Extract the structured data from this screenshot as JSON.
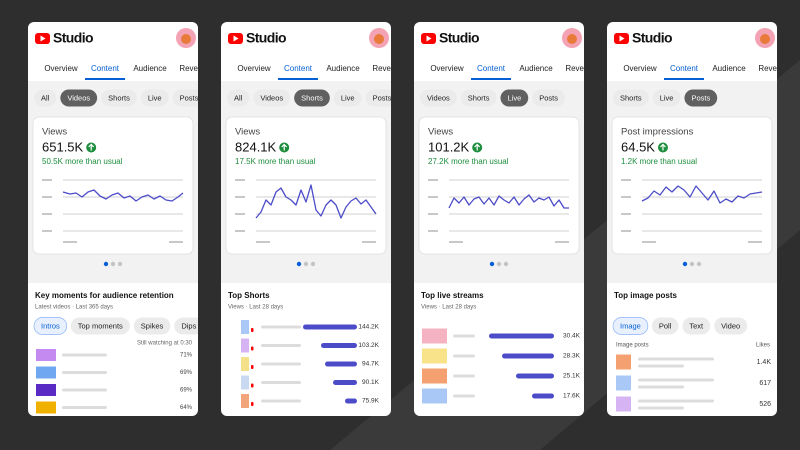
{
  "header": {
    "brand": "Studio",
    "tabs": [
      "Overview",
      "Content",
      "Audience",
      "Rever"
    ],
    "active_tab": 1
  },
  "panels": [
    {
      "chips": [
        "All",
        "Videos",
        "Shorts",
        "Live",
        "Posts"
      ],
      "active_chip": 1,
      "card": {
        "title": "Views",
        "value": "651.5K",
        "delta": "50.5K more than usual"
      },
      "section": {
        "kind": "retention",
        "title": "Key moments for audience retention",
        "subtitle": "Latest videos · Last 365 days",
        "filters": [
          "Intros",
          "Top moments",
          "Spikes",
          "Dips"
        ],
        "active_filter": 0,
        "note": "Still watching at 0:30",
        "rows": [
          {
            "color": "#c58af0",
            "value": "71%"
          },
          {
            "color": "#6fa8f0",
            "value": "69%"
          },
          {
            "color": "#5a2bc4",
            "value": "69%"
          },
          {
            "color": "#f0b000",
            "value": "64%"
          }
        ]
      }
    },
    {
      "chips": [
        "All",
        "Videos",
        "Shorts",
        "Live",
        "Posts"
      ],
      "active_chip": 2,
      "card": {
        "title": "Views",
        "value": "824.1K",
        "delta": "17.5K more than usual"
      },
      "section": {
        "kind": "shorts",
        "title": "Top Shorts",
        "subtitle": "Views · Last 28 days",
        "rows": [
          {
            "color": "#a9c8f5",
            "value": "144.2K"
          },
          {
            "color": "#d6b3f2",
            "value": "103.2K"
          },
          {
            "color": "#f5e08a",
            "value": "94.7K"
          },
          {
            "color": "#c9d9f2",
            "value": "90.1K"
          },
          {
            "color": "#f2a57a",
            "value": "75.9K"
          }
        ]
      }
    },
    {
      "chips": [
        "Videos",
        "Shorts",
        "Live",
        "Posts"
      ],
      "active_chip": 2,
      "card": {
        "title": "Views",
        "value": "101.2K",
        "delta": "27.2K more than usual"
      },
      "section": {
        "kind": "live",
        "title": "Top live streams",
        "subtitle": "Views · Last 28 days",
        "rows": [
          {
            "color": "#f5b3c2",
            "value": "30.4K"
          },
          {
            "color": "#f8e28a",
            "value": "28.3K"
          },
          {
            "color": "#f5a070",
            "value": "25.1K"
          },
          {
            "color": "#a9c8f5",
            "value": "17.6K"
          }
        ]
      }
    },
    {
      "chips": [
        "Shorts",
        "Live",
        "Posts"
      ],
      "active_chip": 2,
      "card": {
        "title": "Post impressions",
        "value": "64.5K",
        "delta": "1.2K more than usual"
      },
      "section": {
        "kind": "posts",
        "title": "Top image posts",
        "subtitle": null,
        "filters": [
          "Image",
          "Poll",
          "Text",
          "Video"
        ],
        "active_filter": 0,
        "list_label": "Image posts",
        "metric_label": "Likes",
        "rows": [
          {
            "color": "#f5a070",
            "value": "1.4K"
          },
          {
            "color": "#a9c8f5",
            "value": "617"
          },
          {
            "color": "#d6b3f2",
            "value": "526"
          }
        ]
      }
    }
  ]
}
